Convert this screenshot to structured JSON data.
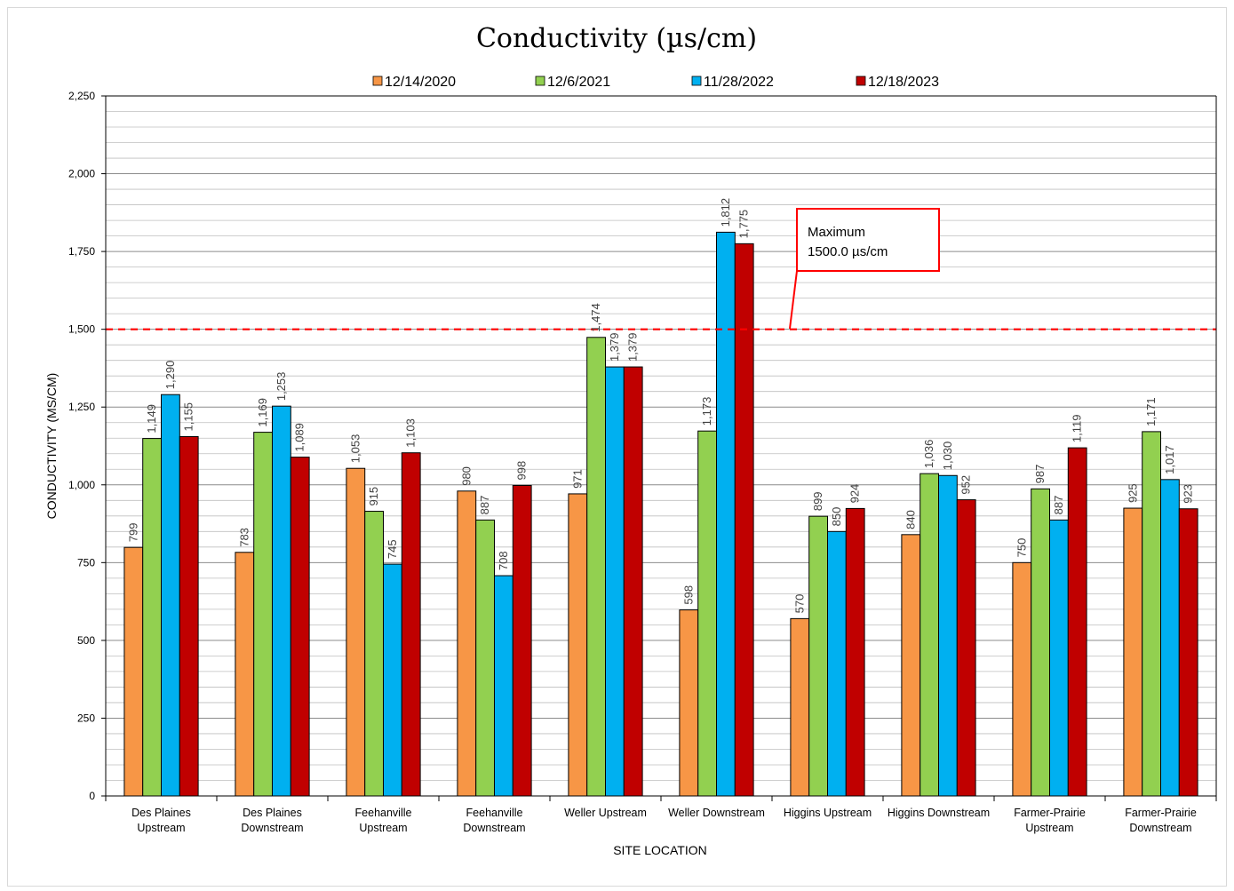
{
  "chart_data": {
    "type": "bar",
    "title": "Conductivity (µs/cm)",
    "xlabel": "SITE LOCATION",
    "ylabel": "CONDUCTIVITY (MS/CM)",
    "ylim": [
      0,
      2250
    ],
    "yticks": [
      0,
      250,
      500,
      750,
      1000,
      1250,
      1500,
      1750,
      2000,
      2250
    ],
    "ytick_labels": [
      "0",
      "250",
      "500",
      "750",
      "1,000",
      "1,250",
      "1,500",
      "1,750",
      "2,000",
      "2,250"
    ],
    "minor_grid_step": 50,
    "grid": true,
    "legend_position": "top",
    "categories": [
      [
        "Des Plaines",
        "Upstream"
      ],
      [
        "Des Plaines",
        "Downstream"
      ],
      [
        "Feehanville",
        "Upstream"
      ],
      [
        "Feehanville",
        "Downstream"
      ],
      [
        "Weller Upstream"
      ],
      [
        "Weller Downstream"
      ],
      [
        "Higgins Upstream"
      ],
      [
        "Higgins Downstream"
      ],
      [
        "Farmer-Prairie",
        "Upstream"
      ],
      [
        "Farmer-Prairie",
        "Downstream"
      ]
    ],
    "series": [
      {
        "name": "12/14/2020",
        "color": "#f79646",
        "values": [
          799,
          783,
          1053,
          980,
          971,
          598,
          570,
          840,
          750,
          925
        ],
        "labels": [
          "799",
          "783",
          "1,053",
          "980",
          "971",
          "598",
          "570",
          "840",
          "750",
          "925"
        ]
      },
      {
        "name": "12/6/2021",
        "color": "#92d050",
        "values": [
          1149,
          1169,
          915,
          887,
          1474,
          1173,
          899,
          1036,
          987,
          1171
        ],
        "labels": [
          "1,149",
          "1,169",
          "915",
          "887",
          "1,474",
          "1,173",
          "899",
          "1,036",
          "987",
          "1,171"
        ]
      },
      {
        "name": "11/28/2022",
        "color": "#00b0f0",
        "values": [
          1290,
          1253,
          745,
          708,
          1379,
          1812,
          850,
          1030,
          887,
          1017
        ],
        "labels": [
          "1,290",
          "1,253",
          "745",
          "708",
          "1,379",
          "1,812",
          "850",
          "1,030",
          "887",
          "1,017"
        ]
      },
      {
        "name": "12/18/2023",
        "color": "#c00000",
        "values": [
          1155,
          1089,
          1103,
          998,
          1379,
          1775,
          924,
          952,
          1119,
          923
        ],
        "labels": [
          "1,155",
          "1,089",
          "1,103",
          "998",
          "1,379",
          "1,775",
          "924",
          "952",
          "1,119",
          "923"
        ]
      }
    ],
    "reference_line": {
      "value": 1500,
      "color": "#ff0000"
    },
    "annotation": {
      "line1": "Maximum",
      "line2": "1500.0 µs/cm",
      "border_color": "#ff0000"
    }
  }
}
